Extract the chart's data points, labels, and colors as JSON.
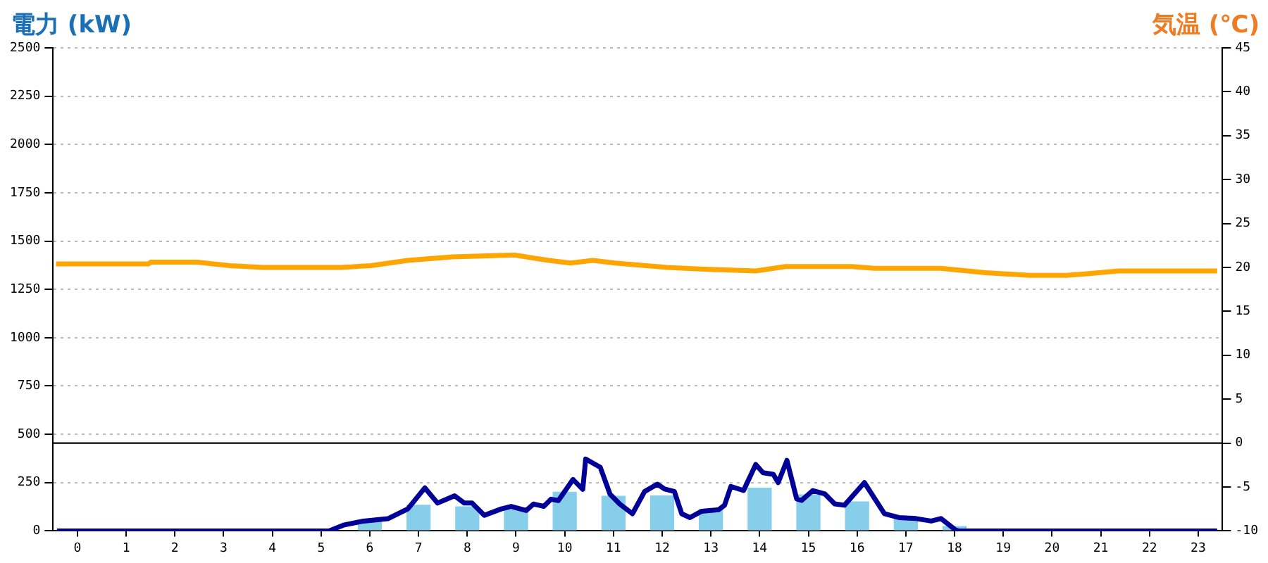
{
  "chart_data": {
    "type": "bar",
    "ylabel": "電力 (kW)",
    "y2label": "気温 (℃)",
    "xlim": [
      -0.5,
      23.5
    ],
    "xticks": [
      0,
      1,
      2,
      3,
      4,
      5,
      6,
      7,
      8,
      9,
      10,
      11,
      12,
      13,
      14,
      15,
      16,
      17,
      18,
      19,
      20,
      21,
      22,
      23
    ],
    "ylim": [
      0,
      2500
    ],
    "yticks": [
      0,
      250,
      500,
      750,
      1000,
      1250,
      1500,
      1750,
      2000,
      2250,
      2500
    ],
    "y2lim": [
      -10,
      45
    ],
    "y2ticks": [
      -10,
      -5,
      0,
      5,
      10,
      15,
      20,
      25,
      30,
      35,
      40,
      45
    ],
    "grid": "y",
    "legend": false,
    "ref_lines": [
      {
        "axis": "y2",
        "value": 0,
        "color": "#000000"
      }
    ],
    "series": [
      {
        "color": "#87ceeb",
        "x": [
          0,
          1,
          2,
          3,
          4,
          5,
          6,
          7,
          8,
          9,
          10,
          11,
          12,
          13,
          14,
          15,
          16,
          17,
          18,
          19,
          20,
          21,
          22,
          23
        ],
        "values": [
          0,
          0,
          0,
          0,
          0,
          0,
          50,
          135,
          127,
          112,
          203,
          182,
          184,
          112,
          224,
          189,
          153,
          66,
          25,
          0,
          0,
          0,
          0,
          0
        ]
      },
      {
        "type": "line",
        "color": "#000099",
        "x": [
          -0.42,
          5.16,
          5.46,
          5.87,
          6.37,
          6.78,
          7.13,
          7.39,
          7.74,
          7.94,
          8.1,
          8.35,
          8.7,
          8.9,
          9.21,
          9.36,
          9.57,
          9.72,
          9.87,
          10.17,
          10.37,
          10.43,
          10.73,
          10.93,
          11.13,
          11.39,
          11.64,
          11.9,
          12.05,
          12.25,
          12.4,
          12.57,
          12.81,
          13.16,
          13.28,
          13.41,
          13.67,
          13.92,
          14.07,
          14.28,
          14.38,
          14.56,
          14.76,
          14.86,
          15.09,
          15.34,
          15.54,
          15.74,
          16.15,
          16.56,
          16.86,
          17.21,
          17.52,
          17.72,
          18.02,
          18.08,
          23.39
        ],
        "values": [
          0,
          0,
          30,
          51,
          63,
          114,
          223,
          144,
          182,
          144,
          144,
          81,
          114,
          127,
          106,
          139,
          127,
          164,
          157,
          266,
          215,
          372,
          329,
          190,
          139,
          89,
          204,
          242,
          217,
          204,
          89,
          69,
          102,
          110,
          133,
          230,
          209,
          344,
          301,
          293,
          250,
          365,
          166,
          158,
          209,
          191,
          140,
          133,
          250,
          89,
          69,
          64,
          51,
          64,
          5,
          0,
          0
        ]
      },
      {
        "type": "line",
        "axis": "y2",
        "color": "#ffa500",
        "x": [
          -0.44,
          1.46,
          1.5,
          2.45,
          3.13,
          3.81,
          5.41,
          6.02,
          6.78,
          7.69,
          8.9,
          8.98,
          9.67,
          10.12,
          10.58,
          11.03,
          12.1,
          12.86,
          13.92,
          14.53,
          15.9,
          16.35,
          17.72,
          18.63,
          19.24,
          19.54,
          20.3,
          20.76,
          21.37,
          23.39
        ],
        "values": [
          20.4,
          20.4,
          20.6,
          20.6,
          20.2,
          20,
          20,
          20.2,
          20.8,
          21.2,
          21.4,
          21.4,
          20.8,
          20.5,
          20.8,
          20.5,
          20,
          19.8,
          19.6,
          20.1,
          20.1,
          19.9,
          19.9,
          19.4,
          19.2,
          19.1,
          19.1,
          19.3,
          19.6,
          19.6
        ]
      }
    ]
  }
}
